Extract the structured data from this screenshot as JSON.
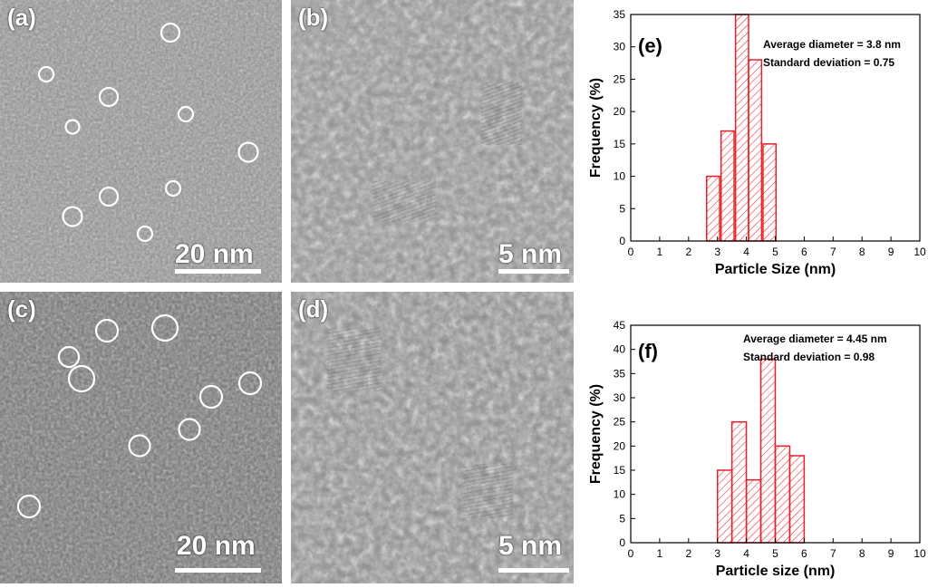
{
  "panels": {
    "a": {
      "label": "(a)",
      "scale": "20 nm"
    },
    "b": {
      "label": "(b)",
      "scale": "5 nm"
    },
    "c": {
      "label": "(c)",
      "scale": "20 nm"
    },
    "d": {
      "label": "(d)",
      "scale": "5 nm"
    }
  },
  "colors": {
    "bar": "#e8202a",
    "axis": "#000000",
    "scale": "#ffffff"
  },
  "chart_data": [
    {
      "type": "bar",
      "panel_label": "(e)",
      "xlabel": "Particle Size (nm)",
      "ylabel": "Frequency (%)",
      "annotation_lines": [
        "Average diameter = 3.8 nm",
        "Standard deviation = 0.75"
      ],
      "xlim": [
        0,
        10
      ],
      "ylim": [
        0,
        35
      ],
      "xticks": [
        0,
        1,
        2,
        3,
        4,
        5,
        6,
        7,
        8,
        9,
        10
      ],
      "yticks": [
        0,
        5,
        10,
        15,
        20,
        25,
        30,
        35
      ],
      "bar_width": 0.45,
      "x": [
        2.85,
        3.35,
        3.85,
        4.3,
        4.8
      ],
      "values": [
        10,
        17,
        35,
        28,
        15
      ]
    },
    {
      "type": "bar",
      "panel_label": "(f)",
      "xlabel": "Particle size (nm)",
      "ylabel": "Frequency (%)",
      "annotation_lines": [
        "Average diameter = 4.45 nm",
        "Standard deviation = 0.98"
      ],
      "xlim": [
        0,
        10
      ],
      "ylim": [
        0,
        45
      ],
      "xticks": [
        0,
        1,
        2,
        3,
        4,
        5,
        6,
        7,
        8,
        9,
        10
      ],
      "yticks": [
        0,
        5,
        10,
        15,
        20,
        25,
        30,
        35,
        40,
        45
      ],
      "bar_width": 0.5,
      "x": [
        3.25,
        3.75,
        4.25,
        4.75,
        5.25,
        5.75
      ],
      "values": [
        15,
        25,
        13,
        38,
        20,
        18
      ]
    }
  ]
}
